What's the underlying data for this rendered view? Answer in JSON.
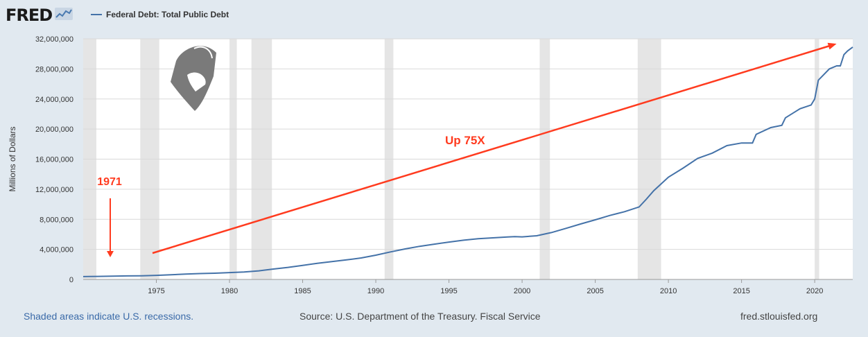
{
  "header": {
    "logo_text": "FRED",
    "logo_icon": "fred-chart-icon",
    "legend_label": "Federal Debt: Total Public Debt"
  },
  "footer": {
    "recession_note": "Shaded areas indicate U.S. recessions.",
    "source": "Source: U.S. Department of the Treasury. Fiscal Service",
    "site": "fred.stlouisfed.org"
  },
  "colors": {
    "page_bg": "#e1e9f0",
    "plot_bg": "#ffffff",
    "series_line": "#4472a8",
    "recession_shade": "#e5e5e5",
    "annotation_red": "#ff3b1f",
    "watermark_gray": "#7a7a7a"
  },
  "annotations": {
    "year_marker": "1971",
    "growth_label": "Up 75X"
  },
  "watermark_icon": "gorilla-logo-icon",
  "chart_data": {
    "type": "line",
    "title": "Federal Debt: Total Public Debt",
    "ylabel": "Millions of Dollars",
    "xlabel": "",
    "xlim": [
      1970.0,
      2022.6
    ],
    "ylim": [
      0,
      32000000
    ],
    "grid": true,
    "legend_position": "top-left",
    "yticks": [
      0,
      4000000,
      8000000,
      12000000,
      16000000,
      20000000,
      24000000,
      28000000,
      32000000
    ],
    "ytick_labels": [
      "0",
      "4,000,000",
      "8,000,000",
      "12,000,000",
      "16,000,000",
      "20,000,000",
      "24,000,000",
      "28,000,000",
      "32,000,000"
    ],
    "xticks": [
      1975,
      1980,
      1985,
      1990,
      1995,
      2000,
      2005,
      2010,
      2015,
      2020
    ],
    "xtick_labels": [
      "1975",
      "1980",
      "1985",
      "1990",
      "1995",
      "2000",
      "2005",
      "2010",
      "2015",
      "2020"
    ],
    "recessions": [
      [
        1969.9,
        1970.9
      ],
      [
        1973.9,
        1975.2
      ],
      [
        1980.0,
        1980.5
      ],
      [
        1981.5,
        1982.9
      ],
      [
        1990.6,
        1991.2
      ],
      [
        2001.2,
        2001.9
      ],
      [
        2007.9,
        2009.5
      ],
      [
        2020.0,
        2020.3
      ]
    ],
    "series": [
      {
        "name": "Federal Debt: Total Public Debt",
        "x": [
          1970.0,
          1971.0,
          1972.0,
          1973.0,
          1974.0,
          1975.0,
          1976.0,
          1977.0,
          1978.0,
          1979.0,
          1980.0,
          1981.0,
          1982.0,
          1983.0,
          1984.0,
          1985.0,
          1986.0,
          1987.0,
          1988.0,
          1989.0,
          1990.0,
          1991.0,
          1992.0,
          1993.0,
          1994.0,
          1995.0,
          1996.0,
          1997.0,
          1998.0,
          1999.0,
          1999.5,
          2000.0,
          2001.0,
          2002.0,
          2003.0,
          2004.0,
          2005.0,
          2006.0,
          2007.0,
          2008.0,
          2008.5,
          2009.0,
          2010.0,
          2011.0,
          2012.0,
          2013.0,
          2014.0,
          2015.0,
          2015.75,
          2016.0,
          2017.0,
          2017.75,
          2018.0,
          2019.0,
          2019.75,
          2020.0,
          2020.25,
          2020.5,
          2021.0,
          2021.5,
          2021.75,
          2022.0,
          2022.25,
          2022.6
        ],
        "y": [
          380000,
          410000,
          440000,
          470000,
          490000,
          540000,
          630000,
          710000,
          780000,
          830000,
          910000,
          1000000,
          1140000,
          1380000,
          1600000,
          1870000,
          2150000,
          2370000,
          2600000,
          2860000,
          3230000,
          3660000,
          4060000,
          4410000,
          4690000,
          4970000,
          5220000,
          5410000,
          5530000,
          5650000,
          5700000,
          5660000,
          5810000,
          6230000,
          6800000,
          7380000,
          7930000,
          8510000,
          9010000,
          9650000,
          10700000,
          11800000,
          13600000,
          14800000,
          16100000,
          16800000,
          17800000,
          18150000,
          18150000,
          19300000,
          20200000,
          20500000,
          21500000,
          22700000,
          23200000,
          24000000,
          26500000,
          27000000,
          28000000,
          28400000,
          28400000,
          29900000,
          30400000,
          30900000
        ]
      }
    ]
  }
}
